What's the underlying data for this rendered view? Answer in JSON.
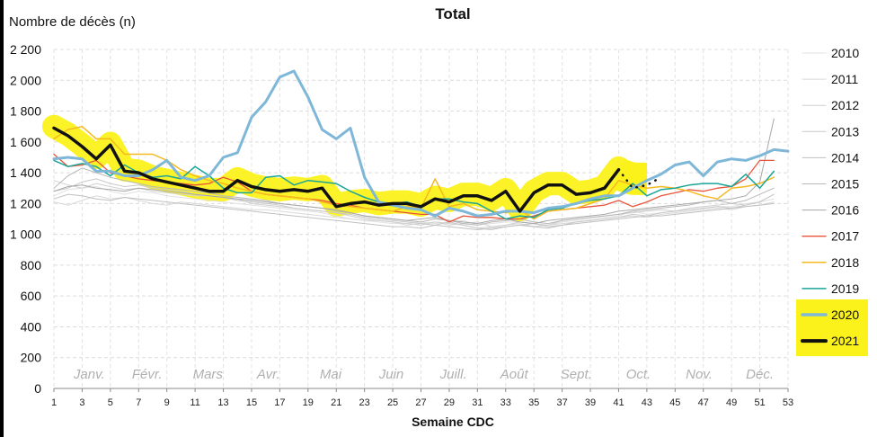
{
  "chart_data": {
    "type": "line",
    "title": "Total",
    "ylabel": "Nombre de décès (n)",
    "xlabel": "Semaine CDC",
    "ylim": [
      0,
      2200
    ],
    "y_ticks": [
      "0",
      "200",
      "400",
      "600",
      "800",
      "1 000",
      "1 200",
      "1 400",
      "1 600",
      "1 800",
      "2 000",
      "2 200"
    ],
    "y_tick_values": [
      0,
      200,
      400,
      600,
      800,
      1000,
      1200,
      1400,
      1600,
      1800,
      2000,
      2200
    ],
    "xlim": [
      1,
      53
    ],
    "x_ticks": [
      1,
      3,
      5,
      7,
      9,
      11,
      13,
      15,
      17,
      19,
      21,
      23,
      25,
      27,
      29,
      31,
      33,
      35,
      37,
      39,
      41,
      43,
      45,
      47,
      49,
      51,
      53
    ],
    "months": [
      {
        "label": "Janv.",
        "week": 3.5
      },
      {
        "label": "Févr.",
        "week": 7.6
      },
      {
        "label": "Mars",
        "week": 11.9
      },
      {
        "label": "Avr.",
        "week": 16.2
      },
      {
        "label": "Mai",
        "week": 20.6
      },
      {
        "label": "Juin",
        "week": 24.9
      },
      {
        "label": "Juill.",
        "week": 29.3
      },
      {
        "label": "Août",
        "week": 33.6
      },
      {
        "label": "Sept.",
        "week": 38.0
      },
      {
        "label": "Oct.",
        "week": 42.4
      },
      {
        "label": "Nov.",
        "week": 46.7
      },
      {
        "label": "Déc.",
        "week": 51.0
      }
    ],
    "legend": [
      "2010",
      "2011",
      "2012",
      "2013",
      "2014",
      "2015",
      "2016",
      "2017",
      "2018",
      "2019",
      "2020",
      "2021"
    ],
    "highlighted_legend": [
      "2020",
      "2021"
    ],
    "series": [
      {
        "name": "2010",
        "color": "#e0e0e0",
        "width": 1,
        "values": [
          1250,
          1290,
          1300,
          1310,
          1280,
          1260,
          1280,
          1270,
          1250,
          1240,
          1230,
          1220,
          1210,
          1200,
          1190,
          1180,
          1170,
          1160,
          1150,
          1140,
          1120,
          1100,
          1090,
          1080,
          1070,
          1070,
          1080,
          1070,
          1080,
          1090,
          1060,
          1070,
          1080,
          1080,
          1070,
          1060,
          1080,
          1090,
          1100,
          1110,
          1120,
          1150,
          1130,
          1140,
          1150,
          1160,
          1170,
          1180,
          1180,
          1200,
          1210,
          1230
        ]
      },
      {
        "name": "2011",
        "color": "#d8d8d8",
        "width": 1,
        "values": [
          1210,
          1190,
          1220,
          1250,
          1230,
          1240,
          1220,
          1200,
          1190,
          1210,
          1200,
          1190,
          1180,
          1170,
          1160,
          1160,
          1150,
          1140,
          1130,
          1120,
          1110,
          1100,
          1090,
          1090,
          1080,
          1060,
          1070,
          1080,
          1060,
          1070,
          1080,
          1050,
          1060,
          1070,
          1050,
          1060,
          1070,
          1080,
          1090,
          1100,
          1110,
          1120,
          1110,
          1130,
          1140,
          1150,
          1160,
          1170,
          1160,
          1180,
          1190,
          1210
        ]
      },
      {
        "name": "2012",
        "color": "#d0d0d0",
        "width": 1,
        "values": [
          1350,
          1320,
          1300,
          1330,
          1310,
          1290,
          1300,
          1280,
          1270,
          1260,
          1250,
          1250,
          1240,
          1230,
          1200,
          1190,
          1180,
          1170,
          1160,
          1150,
          1140,
          1120,
          1100,
          1090,
          1080,
          1070,
          1060,
          1080,
          1070,
          1060,
          1040,
          1050,
          1060,
          1080,
          1070,
          1060,
          1090,
          1100,
          1110,
          1120,
          1130,
          1140,
          1150,
          1160,
          1150,
          1170,
          1180,
          1190,
          1200,
          1190,
          1210,
          1260
        ]
      },
      {
        "name": "2013",
        "color": "#c8c8c8",
        "width": 1,
        "values": [
          1280,
          1300,
          1340,
          1360,
          1330,
          1310,
          1320,
          1300,
          1290,
          1280,
          1260,
          1250,
          1240,
          1220,
          1210,
          1200,
          1190,
          1170,
          1160,
          1150,
          1140,
          1130,
          1110,
          1100,
          1090,
          1080,
          1070,
          1060,
          1080,
          1060,
          1040,
          1030,
          1050,
          1060,
          1070,
          1050,
          1060,
          1080,
          1090,
          1100,
          1110,
          1130,
          1120,
          1140,
          1150,
          1160,
          1170,
          1180,
          1170,
          1190,
          1210,
          1260
        ]
      },
      {
        "name": "2014",
        "color": "#c0c0c0",
        "width": 1,
        "values": [
          1230,
          1260,
          1250,
          1230,
          1220,
          1240,
          1230,
          1220,
          1210,
          1200,
          1190,
          1180,
          1170,
          1160,
          1150,
          1140,
          1130,
          1120,
          1110,
          1100,
          1090,
          1080,
          1070,
          1060,
          1050,
          1050,
          1040,
          1060,
          1050,
          1040,
          1030,
          1040,
          1050,
          1060,
          1050,
          1040,
          1060,
          1070,
          1080,
          1090,
          1100,
          1110,
          1120,
          1120,
          1130,
          1140,
          1150,
          1160,
          1170,
          1180,
          1190,
          1200
        ]
      },
      {
        "name": "2015",
        "color": "#b8b8b8",
        "width": 1,
        "values": [
          1300,
          1380,
          1430,
          1400,
          1370,
          1350,
          1330,
          1310,
          1300,
          1290,
          1280,
          1270,
          1250,
          1240,
          1230,
          1220,
          1200,
          1190,
          1180,
          1170,
          1150,
          1140,
          1120,
          1110,
          1100,
          1090,
          1080,
          1100,
          1090,
          1070,
          1060,
          1080,
          1090,
          1100,
          1080,
          1070,
          1090,
          1100,
          1110,
          1120,
          1130,
          1150,
          1160,
          1170,
          1180,
          1190,
          1210,
          1220,
          1200,
          1220,
          1260,
          1300
        ]
      },
      {
        "name": "2016",
        "color": "#a8a8a8",
        "width": 1,
        "values": [
          1280,
          1310,
          1320,
          1300,
          1290,
          1280,
          1300,
          1290,
          1280,
          1270,
          1260,
          1250,
          1240,
          1230,
          1220,
          1210,
          1200,
          1190,
          1180,
          1170,
          1160,
          1140,
          1120,
          1110,
          1100,
          1090,
          1100,
          1110,
          1090,
          1080,
          1070,
          1090,
          1100,
          1080,
          1070,
          1090,
          1100,
          1110,
          1120,
          1130,
          1150,
          1160,
          1170,
          1180,
          1190,
          1200,
          1210,
          1220,
          1230,
          1250,
          1340,
          1750
        ]
      },
      {
        "name": "2017",
        "color": "#e8533a",
        "width": 1.3,
        "values": [
          1520,
          1440,
          1450,
          1480,
          1400,
          1380,
          1360,
          1350,
          1340,
          1330,
          1320,
          1330,
          1370,
          1340,
          1280,
          1260,
          1250,
          1240,
          1230,
          1220,
          1200,
          1190,
          1170,
          1160,
          1150,
          1140,
          1130,
          1130,
          1080,
          1120,
          1110,
          1110,
          1100,
          1100,
          1120,
          1150,
          1160,
          1170,
          1180,
          1190,
          1220,
          1180,
          1210,
          1250,
          1270,
          1290,
          1280,
          1300,
          1310,
          1360,
          1480,
          1480
        ]
      },
      {
        "name": "2018",
        "color": "#f6b820",
        "width": 1.5,
        "values": [
          1620,
          1680,
          1700,
          1620,
          1620,
          1520,
          1520,
          1520,
          1480,
          1420,
          1380,
          1350,
          1330,
          1300,
          1280,
          1260,
          1250,
          1240,
          1230,
          1210,
          1190,
          1180,
          1170,
          1160,
          1150,
          1180,
          1170,
          1360,
          1180,
          1200,
          1160,
          1150,
          1140,
          1160,
          1100,
          1150,
          1160,
          1170,
          1200,
          1230,
          1350,
          1320,
          1300,
          1310,
          1300,
          1280,
          1250,
          1230,
          1300,
          1310,
          1330,
          1370
        ]
      },
      {
        "name": "2019",
        "color": "#1aa598",
        "width": 1.5,
        "values": [
          1480,
          1440,
          1460,
          1440,
          1380,
          1450,
          1400,
          1370,
          1380,
          1360,
          1440,
          1380,
          1300,
          1270,
          1270,
          1370,
          1380,
          1320,
          1350,
          1340,
          1330,
          1280,
          1240,
          1210,
          1200,
          1210,
          1180,
          1230,
          1230,
          1210,
          1200,
          1150,
          1100,
          1120,
          1110,
          1160,
          1170,
          1200,
          1220,
          1230,
          1250,
          1330,
          1250,
          1290,
          1300,
          1320,
          1330,
          1330,
          1310,
          1390,
          1300,
          1410
        ]
      },
      {
        "name": "2020",
        "color": "#7fb7d8",
        "width": 3,
        "values": [
          1490,
          1500,
          1490,
          1410,
          1410,
          1380,
          1380,
          1420,
          1480,
          1370,
          1350,
          1380,
          1500,
          1530,
          1760,
          1860,
          2020,
          2060,
          1890,
          1680,
          1620,
          1690,
          1370,
          1210,
          1190,
          1170,
          1160,
          1120,
          1170,
          1150,
          1120,
          1130,
          1150,
          1150,
          1140,
          1170,
          1180,
          1200,
          1230,
          1250,
          1250,
          1300,
          1350,
          1390,
          1450,
          1470,
          1380,
          1470,
          1490,
          1480,
          1510,
          1550,
          1540
        ]
      },
      {
        "name": "2021",
        "color": "#111111",
        "width": 3.5,
        "values": [
          1690,
          1640,
          1570,
          1490,
          1580,
          1410,
          1400,
          1360,
          1340,
          1320,
          1300,
          1280,
          1280,
          1350,
          1310,
          1290,
          1280,
          1290,
          1280,
          1300,
          1180,
          1200,
          1210,
          1190,
          1200,
          1200,
          1180,
          1230,
          1210,
          1250,
          1250,
          1220,
          1280,
          1150,
          1270,
          1320,
          1320,
          1260,
          1270,
          1300,
          1420
        ]
      },
      {
        "name": "2021-projection",
        "color": "#111111",
        "width": 2.5,
        "dotted": true,
        "start_week": 41,
        "values": [
          1420,
          1300,
          1320,
          1370
        ]
      }
    ]
  }
}
